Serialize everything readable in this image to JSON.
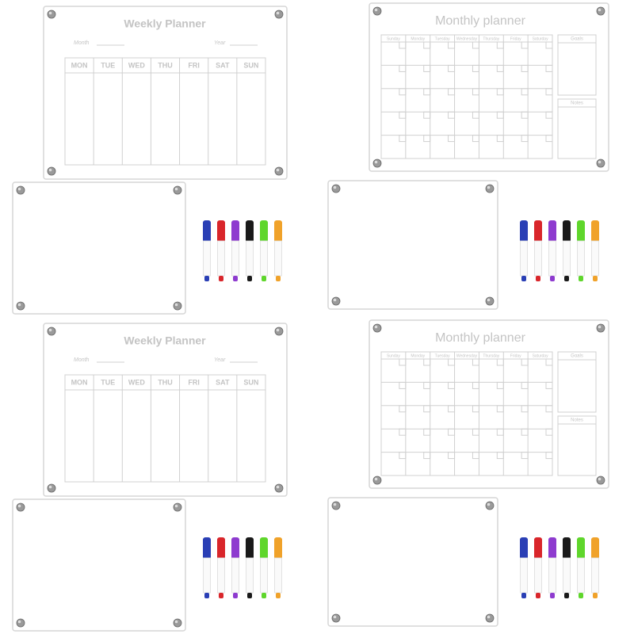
{
  "panels": [
    {
      "title": "Weekly Planner",
      "month_label": "Month",
      "year_label": "Year",
      "days": [
        "MON",
        "TUE",
        "WED",
        "THU",
        "FRI",
        "SAT",
        "SUN"
      ]
    },
    {
      "title": "Monthly planner",
      "days": [
        "Sunday",
        "Monday",
        "Tuesday",
        "Wednesday",
        "Thursday",
        "Friday",
        "Saturday"
      ],
      "goals_label": "Goals",
      "notes_label": "Notes"
    },
    {
      "title": "Weekly Planner",
      "month_label": "Month",
      "year_label": "Year",
      "days": [
        "MON",
        "TUE",
        "WED",
        "THU",
        "FRI",
        "SAT",
        "SUN"
      ]
    },
    {
      "title": "Monthly planner",
      "days": [
        "Sunday",
        "Monday",
        "Tuesday",
        "Wednesday",
        "Thursday",
        "Friday",
        "Saturday"
      ],
      "goals_label": "Goals",
      "notes_label": "Notes"
    }
  ]
}
